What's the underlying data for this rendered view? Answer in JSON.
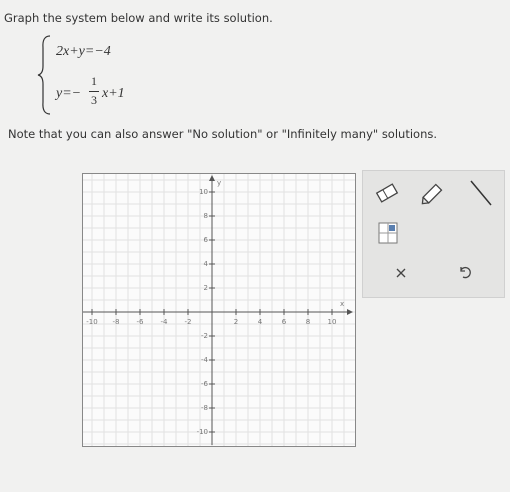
{
  "instruction": "Graph the system below and write its solution.",
  "system": {
    "equation_1": "2x+y=−4",
    "equation_2": {
      "lhs": "y=−",
      "numerator": "1",
      "denominator": "3",
      "rhs": "x+1"
    }
  },
  "note": "Note that you can also answer \"No solution\" or \"Infinitely many\" solutions.",
  "graph": {
    "x_label": "x",
    "y_label": "y",
    "x_tick_labels": [
      -10,
      -8,
      -6,
      -4,
      -2,
      2,
      4,
      6,
      8,
      10
    ],
    "y_tick_labels": [
      10,
      8,
      6,
      4,
      2,
      -2,
      -4,
      -6,
      -8,
      -10
    ]
  }
}
